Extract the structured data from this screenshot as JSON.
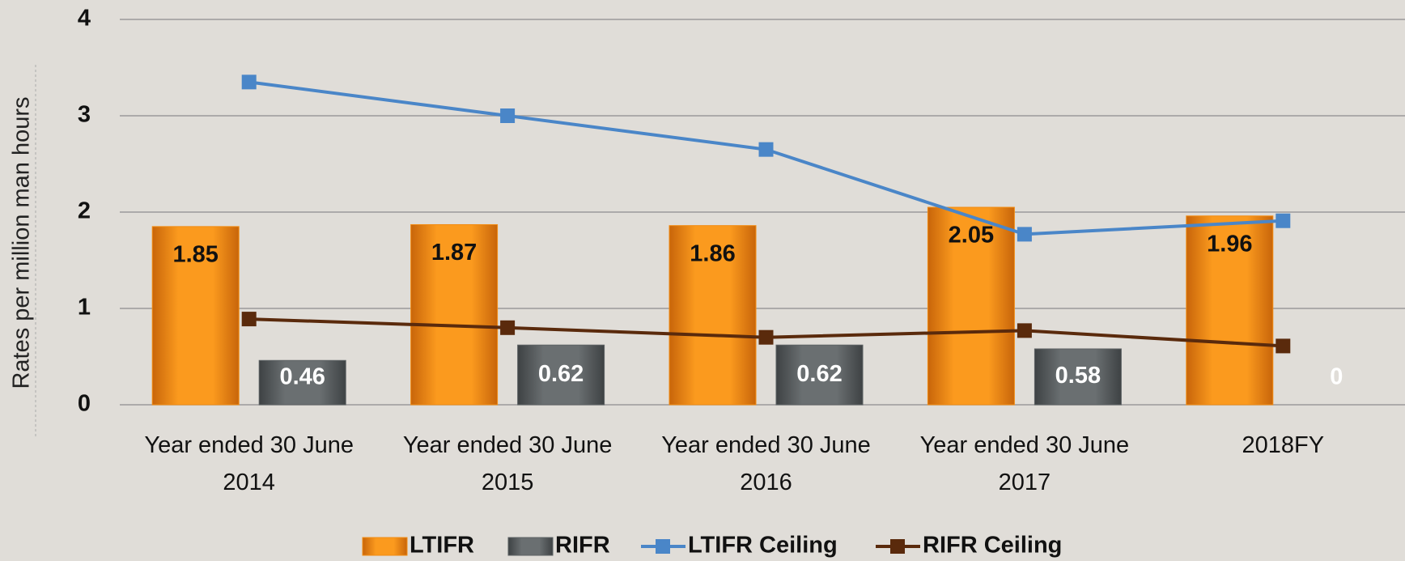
{
  "chart_data": {
    "type": "bar_line",
    "y_label": "Rates per million man hours",
    "categories": [
      "Year ended 30 June 2014",
      "Year ended 30 June 2015",
      "Year ended 30 June 2016",
      "Year ended 30 June 2017",
      "2018FY"
    ],
    "series": [
      {
        "name": "LTIFR",
        "type": "bar",
        "color": "#f28c12",
        "values": [
          1.85,
          1.87,
          1.86,
          2.05,
          1.96
        ]
      },
      {
        "name": "RIFR",
        "type": "bar",
        "color": "#5d6264",
        "values": [
          0.46,
          0.62,
          0.62,
          0.58,
          0
        ]
      },
      {
        "name": "LTIFR Ceiling",
        "type": "line",
        "color": "#4a86c8",
        "values": [
          3.35,
          3.0,
          2.65,
          1.77,
          1.91
        ]
      },
      {
        "name": "RIFR Ceiling",
        "type": "line",
        "color": "#5a2a0c",
        "values": [
          0.89,
          0.8,
          0.7,
          0.77,
          0.61
        ]
      }
    ],
    "ylim": [
      0,
      4
    ],
    "yticks": [
      0,
      1,
      2,
      3,
      4
    ],
    "grid": true,
    "legend": "bottom"
  }
}
